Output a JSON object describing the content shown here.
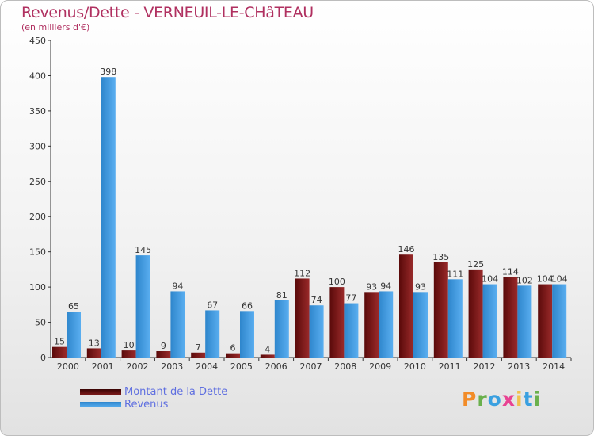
{
  "title": "Revenus/Dette - VERNEUIL-LE-CHâTEAU",
  "subtitle": "(en milliers d'€)",
  "logo_text": "Proxiti",
  "colors": {
    "dette_dark": "#5a0a0a",
    "dette_light": "#9a2a2a",
    "revenus_dark": "#2e86cc",
    "revenus_light": "#5aaef0",
    "title": "#b03060",
    "legend_text": "#5f6fe0",
    "logo": [
      "#f28c28",
      "#6ab04c",
      "#3aa0e0",
      "#e84393",
      "#f2c14e",
      "#3aa0e0",
      "#6ab04c"
    ]
  },
  "chart_data": {
    "type": "bar",
    "categories": [
      "2000",
      "2001",
      "2002",
      "2003",
      "2004",
      "2005",
      "2006",
      "2007",
      "2008",
      "2009",
      "2010",
      "2011",
      "2012",
      "2013",
      "2014"
    ],
    "series": [
      {
        "name": "Montant de la Dette",
        "values": [
          15,
          13,
          10,
          9,
          7,
          6,
          4,
          112,
          100,
          93,
          146,
          135,
          125,
          114,
          104
        ]
      },
      {
        "name": "Revenus",
        "values": [
          65,
          398,
          145,
          94,
          67,
          66,
          81,
          74,
          77,
          94,
          93,
          111,
          104,
          102,
          104
        ]
      }
    ],
    "ylim": [
      0,
      450
    ],
    "yticks": [
      0,
      50,
      100,
      150,
      200,
      250,
      300,
      350,
      400,
      450
    ],
    "grid": false,
    "legend_position": "bottom-left"
  }
}
